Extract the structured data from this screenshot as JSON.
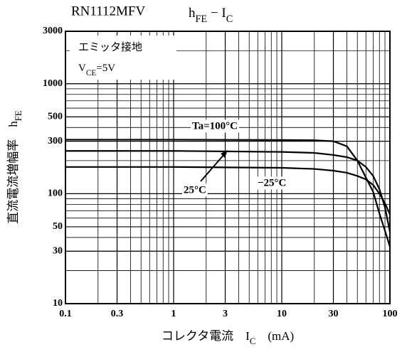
{
  "chart_data": {
    "type": "line",
    "title": "RN1112MFV",
    "title_formula": [
      {
        "text": "h"
      },
      {
        "text": "FE",
        "sub": true
      },
      {
        "text": " − I"
      },
      {
        "text": "C",
        "sub": true
      }
    ],
    "x_label": [
      {
        "text": "コレクタ電流　I"
      },
      {
        "text": "C",
        "sub": true
      },
      {
        "text": "　(mA)"
      }
    ],
    "y_label": [
      {
        "text": "直流電流増幅率　h"
      },
      {
        "text": "FE",
        "sub": true
      }
    ],
    "annotations": [
      [
        {
          "text": "エミッタ接地"
        }
      ],
      [
        {
          "text": "V"
        },
        {
          "text": "CE",
          "sub": true
        },
        {
          "text": "=5V"
        }
      ]
    ],
    "x": [
      0.1,
      1,
      10,
      20,
      30,
      40,
      50,
      60,
      70,
      80,
      90,
      100
    ],
    "series": [
      {
        "name": "Ta=100°C",
        "color": "#000000",
        "values": [
          310,
          310,
          308,
          306,
          300,
          270,
          200,
          140,
          104,
          66,
          46,
          33
        ]
      },
      {
        "name": "25°C",
        "color": "#000000",
        "values": [
          245,
          245,
          240,
          235,
          225,
          215,
          200,
          175,
          145,
          110,
          75,
          45
        ]
      },
      {
        "name": "−25°C",
        "color": "#000000",
        "values": [
          175,
          175,
          172,
          168,
          162,
          155,
          145,
          135,
          120,
          100,
          82,
          65
        ]
      }
    ],
    "xlim": [
      0.1,
      100
    ],
    "ylim": [
      10,
      3000
    ],
    "xticks": [
      0.1,
      0.3,
      1,
      3,
      10,
      30,
      100
    ],
    "yticks": [
      10,
      30,
      50,
      100,
      300,
      500,
      1000,
      3000
    ],
    "log_x": true,
    "log_y": true,
    "grid": true
  }
}
